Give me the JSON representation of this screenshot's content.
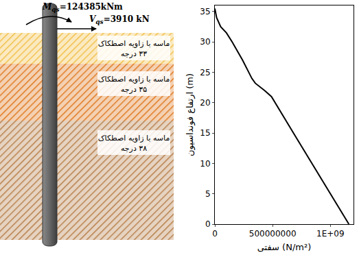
{
  "diagram": {
    "moment": {
      "symbol": "M",
      "subscript": "qs",
      "text": "=124385kNm"
    },
    "shear": {
      "symbol": "V",
      "subscript": "qs",
      "text": "=3910 kN"
    },
    "layers": [
      {
        "label": "ماسه با زاویه اصطکاک",
        "angle": "۳۳ درجه",
        "color": "#f2c14e"
      },
      {
        "label": "ماسه با زاویه اصطکاک",
        "angle": "۳۵ درجه",
        "color": "#e07b24"
      },
      {
        "label": "ماسه با زاویه اصطکاک",
        "angle": "۳۸ درجه",
        "color": "#b8814d"
      }
    ]
  },
  "chart_data": {
    "type": "line",
    "x_label": "سفتی (N/m²)",
    "y_label": "ارتفاع فونداسیون (m)",
    "x": [
      0,
      15000000,
      50000000,
      100000000,
      150000000,
      240000000,
      320000000,
      350000000,
      430000000,
      490000000,
      680000000,
      840000000,
      1000000000,
      1160000000
    ],
    "values": [
      35.5,
      34,
      32.5,
      31.5,
      30,
      27,
      24,
      23.2,
      22,
      21,
      15,
      10,
      5,
      0
    ],
    "color": "#000000",
    "line_style": "solid",
    "marker": "none",
    "xlim": [
      0,
      1200000000
    ],
    "xticks": [
      0,
      500000000,
      {
        "value": 1000000000,
        "label": "1E+09"
      }
    ],
    "ylim": [
      0,
      36
    ],
    "yticks": [
      0,
      5,
      10,
      15,
      20,
      25,
      30,
      35
    ],
    "grid": false
  }
}
